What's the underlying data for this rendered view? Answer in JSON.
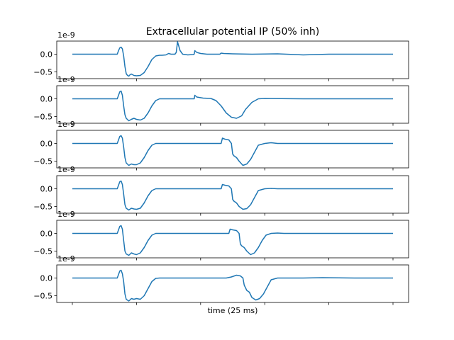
{
  "chart_data": {
    "type": "line",
    "title": "Extracellular potential IP (50% inh)",
    "xlabel": "time (25 ms)",
    "ylabel": "",
    "y_offset_label": "1e-9",
    "yticks": [
      0.0,
      -0.5
    ],
    "ytick_labels": [
      "0.0",
      "−0.5"
    ],
    "xlim": [
      0,
      25
    ],
    "ylim": [
      -0.7,
      0.3
    ],
    "grid": false,
    "colors": {
      "line": "#1f77b4"
    },
    "panels": [
      {
        "name": "panel-1",
        "x": [
          0,
          3.5,
          3.6,
          3.7,
          3.8,
          3.9,
          4.0,
          4.1,
          4.2,
          4.3,
          4.4,
          4.5,
          4.6,
          4.8,
          5.0,
          5.3,
          5.6,
          5.9,
          6.2,
          6.5,
          6.8,
          7.0,
          7.3,
          7.5,
          7.7,
          7.8,
          7.9,
          8.0,
          8.1,
          8.2,
          8.4,
          8.6,
          9.0,
          9.4,
          9.5,
          9.55,
          9.7,
          10.0,
          10.5,
          11.5,
          11.6,
          11.8,
          12.5,
          14,
          16,
          18,
          20,
          22,
          25
        ],
        "y": [
          0,
          0,
          0.1,
          0.18,
          0.2,
          0.15,
          -0.05,
          -0.35,
          -0.55,
          -0.6,
          -0.62,
          -0.58,
          -0.56,
          -0.6,
          -0.61,
          -0.6,
          -0.52,
          -0.35,
          -0.15,
          -0.05,
          -0.03,
          -0.03,
          -0.02,
          0.02,
          0.0,
          0.0,
          0.0,
          0.0,
          0.05,
          0.35,
          0.1,
          0.0,
          -0.02,
          -0.01,
          0.0,
          0.1,
          0.05,
          0.02,
          0.0,
          0.0,
          0.03,
          0.02,
          0.01,
          0.0,
          0.01,
          -0.02,
          0.0,
          0.0,
          0.0
        ]
      },
      {
        "name": "panel-2",
        "x": [
          0,
          3.5,
          3.6,
          3.7,
          3.8,
          3.9,
          4.0,
          4.1,
          4.2,
          4.4,
          4.6,
          4.8,
          5.0,
          5.3,
          5.6,
          5.9,
          6.2,
          6.5,
          6.8,
          7.0,
          9.5,
          9.55,
          9.7,
          10.2,
          10.8,
          11.2,
          11.6,
          12.0,
          12.4,
          12.8,
          13.2,
          13.5,
          14.0,
          14.5,
          15.0,
          18,
          22,
          25
        ],
        "y": [
          0,
          0,
          0.1,
          0.2,
          0.22,
          0.1,
          -0.2,
          -0.45,
          -0.55,
          -0.62,
          -0.58,
          -0.55,
          -0.58,
          -0.6,
          -0.55,
          -0.4,
          -0.2,
          -0.05,
          0.0,
          0.0,
          0.0,
          0.1,
          0.05,
          0.02,
          0.01,
          -0.05,
          -0.2,
          -0.4,
          -0.52,
          -0.55,
          -0.48,
          -0.3,
          -0.1,
          0.0,
          0.01,
          0.0,
          0.0,
          0.0
        ]
      },
      {
        "name": "panel-3",
        "x": [
          0,
          3.5,
          3.6,
          3.7,
          3.8,
          3.9,
          4.0,
          4.1,
          4.2,
          4.4,
          4.6,
          4.8,
          5.0,
          5.3,
          5.6,
          5.9,
          6.2,
          6.5,
          6.8,
          7.0,
          11.6,
          11.7,
          11.9,
          12.2,
          12.4,
          12.5,
          12.6,
          12.8,
          13.0,
          13.3,
          13.6,
          13.9,
          14.2,
          14.5,
          15.0,
          15.5,
          16.0,
          18,
          22,
          25
        ],
        "y": [
          0,
          0,
          0.1,
          0.2,
          0.22,
          0.15,
          -0.1,
          -0.4,
          -0.55,
          -0.62,
          -0.58,
          -0.6,
          -0.6,
          -0.55,
          -0.4,
          -0.2,
          -0.05,
          0.0,
          0.0,
          0.0,
          0.0,
          0.15,
          0.12,
          0.1,
          0.0,
          -0.3,
          -0.35,
          -0.4,
          -0.5,
          -0.62,
          -0.58,
          -0.45,
          -0.25,
          -0.05,
          0.0,
          0.02,
          0.0,
          0.0,
          0.0,
          0.0
        ]
      },
      {
        "name": "panel-4",
        "x": [
          0,
          3.5,
          3.6,
          3.7,
          3.8,
          3.9,
          4.0,
          4.1,
          4.2,
          4.4,
          4.6,
          4.8,
          5.0,
          5.3,
          5.6,
          5.9,
          6.2,
          6.5,
          6.8,
          7.0,
          11.6,
          11.7,
          11.9,
          12.2,
          12.4,
          12.5,
          12.6,
          12.8,
          13.0,
          13.3,
          13.6,
          13.9,
          14.2,
          14.5,
          15.0,
          15.5,
          16.0,
          18,
          22,
          25
        ],
        "y": [
          0,
          0,
          0.1,
          0.2,
          0.22,
          0.12,
          -0.15,
          -0.45,
          -0.55,
          -0.6,
          -0.55,
          -0.57,
          -0.58,
          -0.55,
          -0.4,
          -0.2,
          -0.05,
          0.0,
          0.0,
          0.0,
          0.0,
          0.12,
          0.1,
          0.08,
          0.0,
          -0.3,
          -0.35,
          -0.4,
          -0.5,
          -0.58,
          -0.56,
          -0.45,
          -0.25,
          -0.05,
          0.0,
          0.01,
          0.0,
          0.0,
          0.0,
          0.0
        ]
      },
      {
        "name": "panel-5",
        "x": [
          0,
          3.5,
          3.6,
          3.7,
          3.8,
          3.9,
          4.0,
          4.1,
          4.2,
          4.4,
          4.6,
          4.8,
          5.0,
          5.3,
          5.6,
          5.9,
          6.2,
          6.5,
          6.8,
          7.0,
          12.2,
          12.3,
          12.5,
          12.8,
          13.0,
          13.1,
          13.2,
          13.4,
          13.6,
          13.9,
          14.2,
          14.5,
          14.8,
          15.1,
          15.5,
          16.0,
          16.5,
          18,
          22,
          25
        ],
        "y": [
          0,
          0,
          0.1,
          0.2,
          0.22,
          0.12,
          -0.2,
          -0.5,
          -0.58,
          -0.62,
          -0.55,
          -0.58,
          -0.6,
          -0.55,
          -0.4,
          -0.2,
          -0.05,
          0.0,
          0.0,
          0.0,
          0.0,
          0.12,
          0.1,
          0.08,
          0.0,
          -0.3,
          -0.35,
          -0.4,
          -0.5,
          -0.6,
          -0.55,
          -0.4,
          -0.2,
          -0.05,
          0.0,
          0.01,
          0.0,
          0.0,
          0.0,
          0.0
        ]
      },
      {
        "name": "panel-6",
        "x": [
          0,
          3.5,
          3.6,
          3.7,
          3.8,
          3.9,
          4.0,
          4.1,
          4.2,
          4.4,
          4.6,
          4.8,
          5.0,
          5.3,
          5.6,
          5.9,
          6.2,
          6.5,
          6.8,
          7.0,
          12.0,
          12.4,
          12.8,
          13.1,
          13.3,
          13.4,
          13.6,
          13.8,
          14.0,
          14.3,
          14.6,
          14.9,
          15.2,
          15.5,
          16.0,
          18,
          19.5,
          22,
          25
        ],
        "y": [
          0,
          0,
          0.1,
          0.2,
          0.22,
          0.12,
          -0.1,
          -0.45,
          -0.6,
          -0.65,
          -0.58,
          -0.6,
          -0.58,
          -0.6,
          -0.5,
          -0.3,
          -0.1,
          -0.01,
          0.0,
          0.0,
          0.0,
          0.03,
          0.08,
          0.06,
          0.0,
          -0.2,
          -0.35,
          -0.4,
          -0.55,
          -0.62,
          -0.58,
          -0.45,
          -0.25,
          -0.05,
          0.0,
          0.0,
          0.01,
          0.0,
          0.0
        ]
      }
    ]
  }
}
